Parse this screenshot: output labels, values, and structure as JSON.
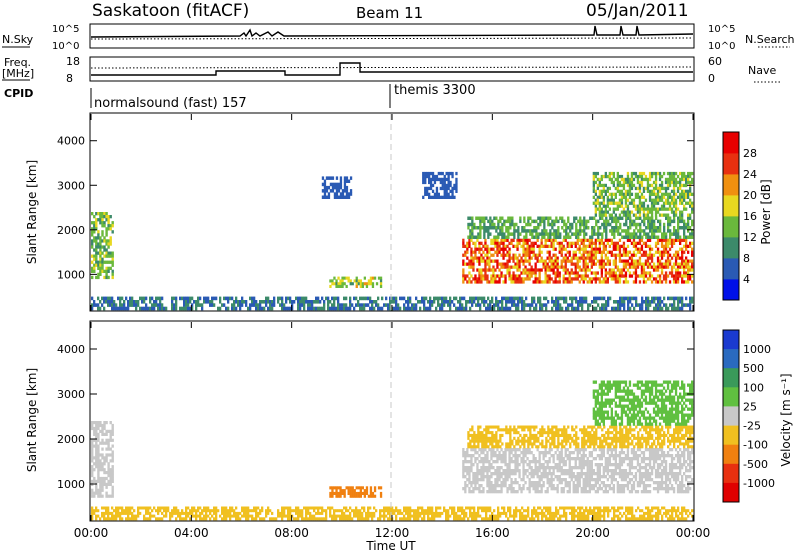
{
  "header": {
    "station": "Saskatoon (fitACF)",
    "beam": "Beam 11",
    "date": "05/Jan/2011"
  },
  "strip_panels": {
    "nsky_label": "N.Sky",
    "nsky_ticks": [
      "10^5",
      "10^0"
    ],
    "nsearch_label": "N.Search",
    "nsearch_ticks": [
      "10^5",
      "10^0"
    ],
    "freq_label": "Freq.",
    "freq_unit": "[MHz]",
    "freq_ticks": [
      "18",
      "8"
    ],
    "nave_label": "Nave",
    "nave_ticks": [
      "60",
      "0"
    ],
    "cpid_label": "CPID",
    "cpid_segments": [
      {
        "name": "normalsound (fast) 157",
        "start_hr": 0,
        "end_hr": 12
      },
      {
        "name": "themis 3300",
        "start_hr": 12,
        "end_hr": 24
      }
    ]
  },
  "chart_data": [
    {
      "type": "heatmap",
      "panel": "power",
      "ylabel": "Slant Range [km]",
      "y_ticks": [
        "1000",
        "2000",
        "3000",
        "4000"
      ],
      "ylim": [
        200,
        4600
      ],
      "xlim": [
        0,
        24
      ],
      "colorbar_label": "Power [dB]",
      "colorbar_ticks": [
        "4",
        "8",
        "12",
        "16",
        "20",
        "24",
        "28"
      ],
      "colorbar_colors": [
        "#0010e8",
        "#2a5ab4",
        "#3c8a6a",
        "#6ab83c",
        "#e8d820",
        "#f09010",
        "#e83010",
        "#e80000"
      ],
      "regions": [
        {
          "x": [
            0.0,
            0.9
          ],
          "y": [
            900,
            2400
          ],
          "v": 14
        },
        {
          "x": [
            9.5,
            11.6
          ],
          "y": [
            700,
            950
          ],
          "v": 16
        },
        {
          "x": [
            9.2,
            10.4
          ],
          "y": [
            2700,
            3200
          ],
          "v": 6
        },
        {
          "x": [
            0.0,
            24.0
          ],
          "y": [
            200,
            500
          ],
          "v": 8
        },
        {
          "x": [
            14.8,
            24.0
          ],
          "y": [
            800,
            1800
          ],
          "v": 24
        },
        {
          "x": [
            15.0,
            24.0
          ],
          "y": [
            1800,
            2300
          ],
          "v": 12
        },
        {
          "x": [
            13.2,
            14.6
          ],
          "y": [
            2700,
            3300
          ],
          "v": 6
        },
        {
          "x": [
            20.0,
            24.0
          ],
          "y": [
            2300,
            3300
          ],
          "v": 14
        }
      ]
    },
    {
      "type": "heatmap",
      "panel": "velocity",
      "ylabel": "Slant Range [km]",
      "y_ticks": [
        "1000",
        "2000",
        "3000",
        "4000"
      ],
      "ylim": [
        200,
        4600
      ],
      "xlim": [
        0,
        24
      ],
      "colorbar_label": "Velocity [m s⁻¹]",
      "colorbar_ticks": [
        "1000",
        "500",
        "100",
        "25",
        "-25",
        "-100",
        "-500",
        "-1000"
      ],
      "colorbar_colors": [
        "#1a3ad0",
        "#2a6ac0",
        "#3a9a5a",
        "#60c040",
        "#c8c8c8",
        "#f0c020",
        "#f08010",
        "#e83010",
        "#e00000"
      ],
      "x_ticks": [
        "00:00",
        "04:00",
        "08:00",
        "12:00",
        "16:00",
        "20:00",
        "00:00"
      ],
      "xlabel": "Time UT",
      "regions": [
        {
          "x": [
            0.0,
            0.9
          ],
          "y": [
            700,
            2400
          ],
          "v": 0
        },
        {
          "x": [
            9.5,
            11.6
          ],
          "y": [
            700,
            950
          ],
          "v": -150
        },
        {
          "x": [
            0.0,
            24.0
          ],
          "y": [
            200,
            500
          ],
          "v": -60
        },
        {
          "x": [
            14.8,
            24.0
          ],
          "y": [
            800,
            1800
          ],
          "v": 0
        },
        {
          "x": [
            15.0,
            24.0
          ],
          "y": [
            1800,
            2300
          ],
          "v": -40
        },
        {
          "x": [
            20.0,
            24.0
          ],
          "y": [
            2300,
            3300
          ],
          "v": 60
        }
      ]
    }
  ]
}
